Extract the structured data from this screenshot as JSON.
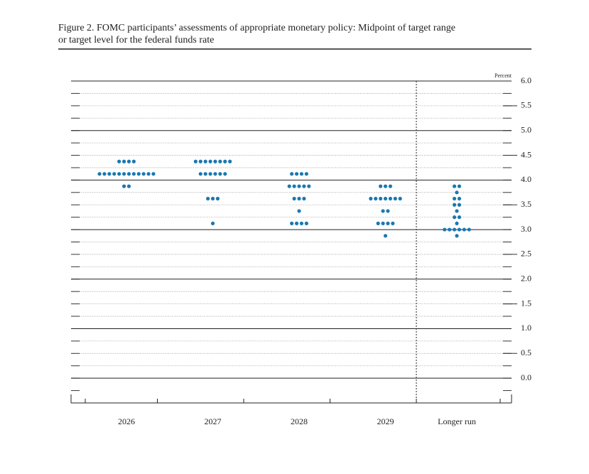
{
  "chart_data": {
    "type": "dot",
    "title": "Figure 2. FOMC participants’ assessments of appropriate monetary policy: Midpoint of target range",
    "subtitle": "or target level for the federal funds rate",
    "y_axis_label": "Percent",
    "color": "#1b78b0",
    "categories": [
      "2026",
      "2027",
      "2028",
      "2029",
      "Longer run"
    ],
    "dots": [
      [
        {
          "y": 4.375,
          "n": 4
        },
        {
          "y": 4.125,
          "n": 12
        },
        {
          "y": 3.875,
          "n": 2
        }
      ],
      [
        {
          "y": 4.375,
          "n": 8
        },
        {
          "y": 4.125,
          "n": 6
        },
        {
          "y": 3.625,
          "n": 3
        },
        {
          "y": 3.125,
          "n": 1
        }
      ],
      [
        {
          "y": 4.125,
          "n": 4
        },
        {
          "y": 3.875,
          "n": 5
        },
        {
          "y": 3.625,
          "n": 3
        },
        {
          "y": 3.375,
          "n": 1
        },
        {
          "y": 3.125,
          "n": 4
        }
      ],
      [
        {
          "y": 3.875,
          "n": 3
        },
        {
          "y": 3.625,
          "n": 7
        },
        {
          "y": 3.375,
          "n": 2
        },
        {
          "y": 3.125,
          "n": 4
        },
        {
          "y": 2.875,
          "n": 1
        }
      ],
      [
        {
          "y": 3.875,
          "n": 2
        },
        {
          "y": 3.75,
          "n": 1
        },
        {
          "y": 3.625,
          "n": 2
        },
        {
          "y": 3.5,
          "n": 2
        },
        {
          "y": 3.375,
          "n": 1
        },
        {
          "y": 3.25,
          "n": 2
        },
        {
          "y": 3.125,
          "n": 1
        },
        {
          "y": 3.0,
          "n": 6
        },
        {
          "y": 2.875,
          "n": 1
        }
      ]
    ],
    "ylim": [
      -0.5,
      6
    ],
    "yticks": [
      {
        "value": 0,
        "label": "0.0"
      },
      0.5,
      {
        "value": 1,
        "label": "1.0"
      },
      1.5,
      {
        "value": 2,
        "label": "2.0"
      },
      2.5,
      {
        "value": 3,
        "label": "3.0"
      },
      3.5,
      {
        "value": 4,
        "label": "4.0"
      },
      4.5,
      {
        "value": 5,
        "label": "5.0"
      },
      5.5,
      {
        "value": 6,
        "label": "6.0"
      }
    ]
  }
}
